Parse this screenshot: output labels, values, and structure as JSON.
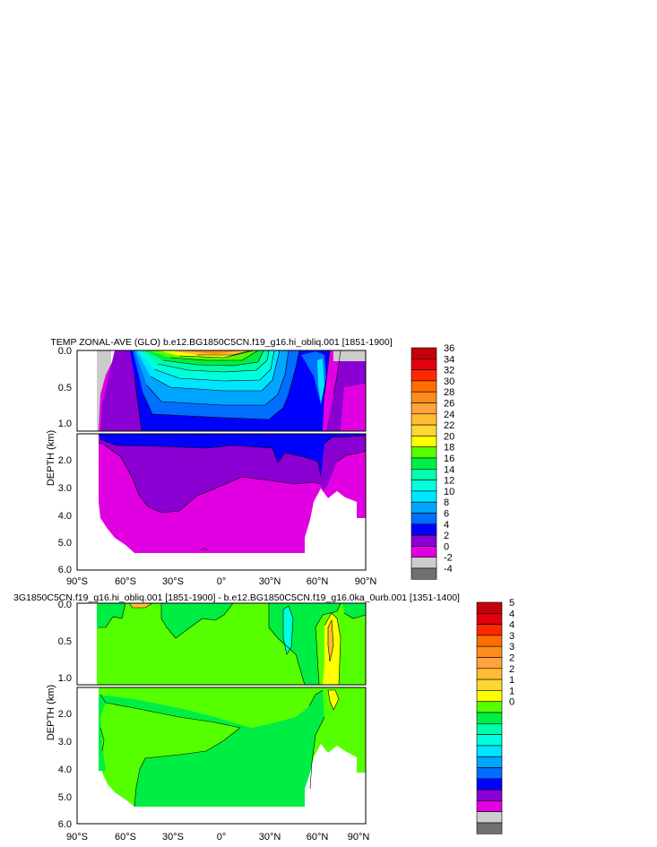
{
  "chart_data": [
    {
      "type": "heatmap",
      "title": "TEMP ZONAL-AVE (GLO) b.e12.BG1850C5CN.f19_g16.hi_obliq.001 [1851-1900]",
      "ylabel": "DEPTH (km)",
      "xlabel": "",
      "xticks": [
        "90°S",
        "60°S",
        "30°S",
        "0°",
        "30°N",
        "60°N",
        "90°N"
      ],
      "yticks_upper": [
        "0.0",
        "0.5",
        "1.0"
      ],
      "yticks_lower": [
        "2.0",
        "3.0",
        "4.0",
        "5.0",
        "6.0"
      ],
      "xlim": [
        -90,
        90
      ],
      "ylim": [
        6.0,
        0.0
      ],
      "colorbar": {
        "labels": [
          "36",
          "34",
          "32",
          "30",
          "28",
          "26",
          "24",
          "22",
          "20",
          "18",
          "16",
          "14",
          "12",
          "10",
          "8",
          "6",
          "4",
          "2",
          "0",
          "-2",
          "-4"
        ],
        "colors": [
          "#c4000c",
          "#e0000f",
          "#ff2800",
          "#ff6e00",
          "#ff8c1a",
          "#ffa33d",
          "#ffbd33",
          "#ffd633",
          "#ffff00",
          "#55ff00",
          "#00ee44",
          "#00ffaa",
          "#00ffdd",
          "#00e5ff",
          "#00a5ff",
          "#006eff",
          "#0000ff",
          "#8a00d2",
          "#e100e1",
          "#cccccc",
          "#707070"
        ]
      }
    },
    {
      "type": "heatmap",
      "title": "3G1850C5CN.f19_g16.hi_obliq.001 [1851-1900] - b.e12.BG1850C5CN.f19_g16.0ka_0urb.001 [1351-1400]",
      "ylabel": "DEPTH (km)",
      "xlabel": "",
      "xticks": [
        "90°S",
        "60°S",
        "30°S",
        "0°",
        "30°N",
        "60°N",
        "90°N"
      ],
      "yticks_upper": [
        "0.0",
        "0.5",
        "1.0"
      ],
      "yticks_lower": [
        "2.0",
        "3.0",
        "4.0",
        "5.0",
        "6.0"
      ],
      "xlim": [
        -90,
        90
      ],
      "ylim": [
        6.0,
        0.0
      ],
      "colorbar": {
        "labels": [
          "5",
          "4",
          "4",
          "3",
          "3",
          "2",
          "2",
          "1",
          "1",
          "0"
        ],
        "colors": [
          "#c4000c",
          "#e0000f",
          "#ff2800",
          "#ff6e00",
          "#ff8c1a",
          "#ffa33d",
          "#ffbd33",
          "#ffd633",
          "#ffff00",
          "#55ff00",
          "#00ee44",
          "#00ffaa",
          "#00ffdd",
          "#00e5ff",
          "#00a5ff",
          "#006eff",
          "#0000ff",
          "#8a00d2",
          "#e100e1",
          "#cccccc",
          "#707070"
        ]
      }
    }
  ]
}
